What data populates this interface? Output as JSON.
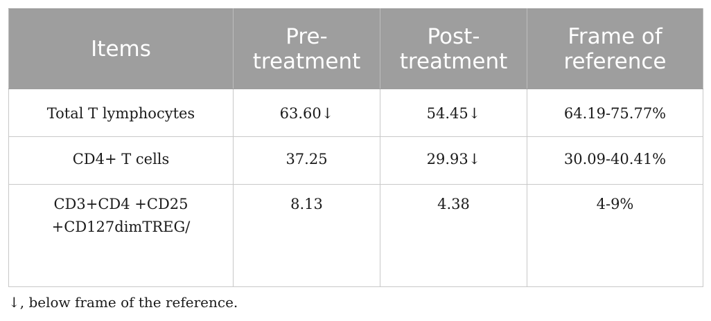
{
  "table": {
    "headers": [
      "Items",
      "Pre-treatment",
      "Post-treatment",
      "Frame of reference"
    ],
    "rows": [
      {
        "item": "Total T lymphocytes",
        "pre": "63.60↓",
        "post": "54.45↓",
        "reference": "64.19-75.77%"
      },
      {
        "item": "CD4+ T cells",
        "pre": "37.25",
        "post": "29.93↓",
        "reference": "30.09-40.41%"
      },
      {
        "item": "CD3+CD4 +CD25 +CD127dimTREG/",
        "pre": "8.13",
        "post": "4.38",
        "reference": "4-9%"
      }
    ]
  },
  "footnote": "↓, below frame of the reference."
}
